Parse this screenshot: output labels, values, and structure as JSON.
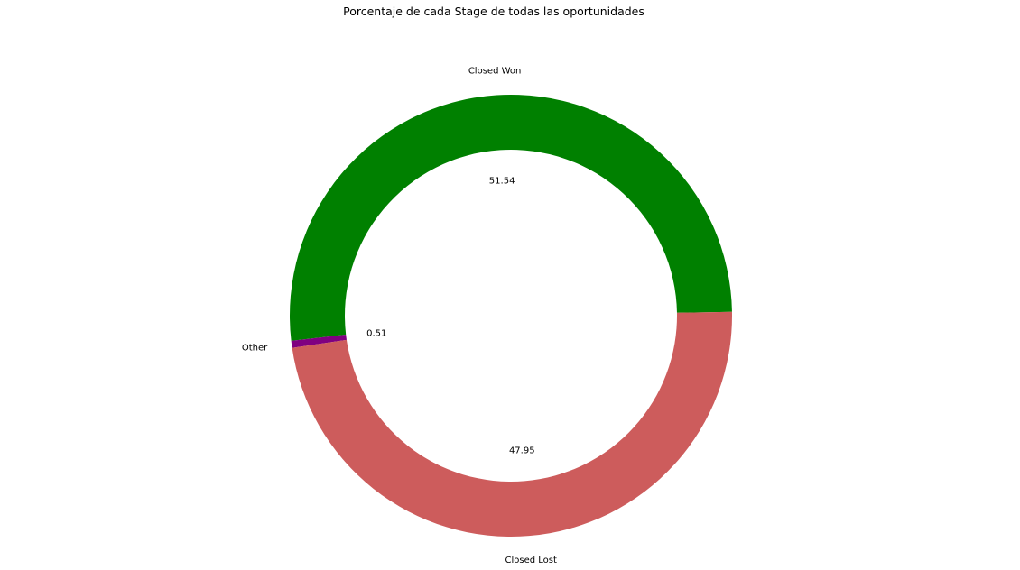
{
  "chart_data": {
    "type": "pie",
    "variant": "donut",
    "title": "Porcentaje de cada Stage de todas las oportunidades",
    "slices": [
      {
        "label": "Closed Won",
        "value": 51.54,
        "value_label": "51.54",
        "color": "#008000"
      },
      {
        "label": "Other",
        "value": 0.51,
        "value_label": "0.51",
        "color": "#800080"
      },
      {
        "label": "Closed Lost",
        "value": 47.95,
        "value_label": "47.95",
        "color": "#cd5c5c"
      }
    ],
    "legend": "none"
  }
}
